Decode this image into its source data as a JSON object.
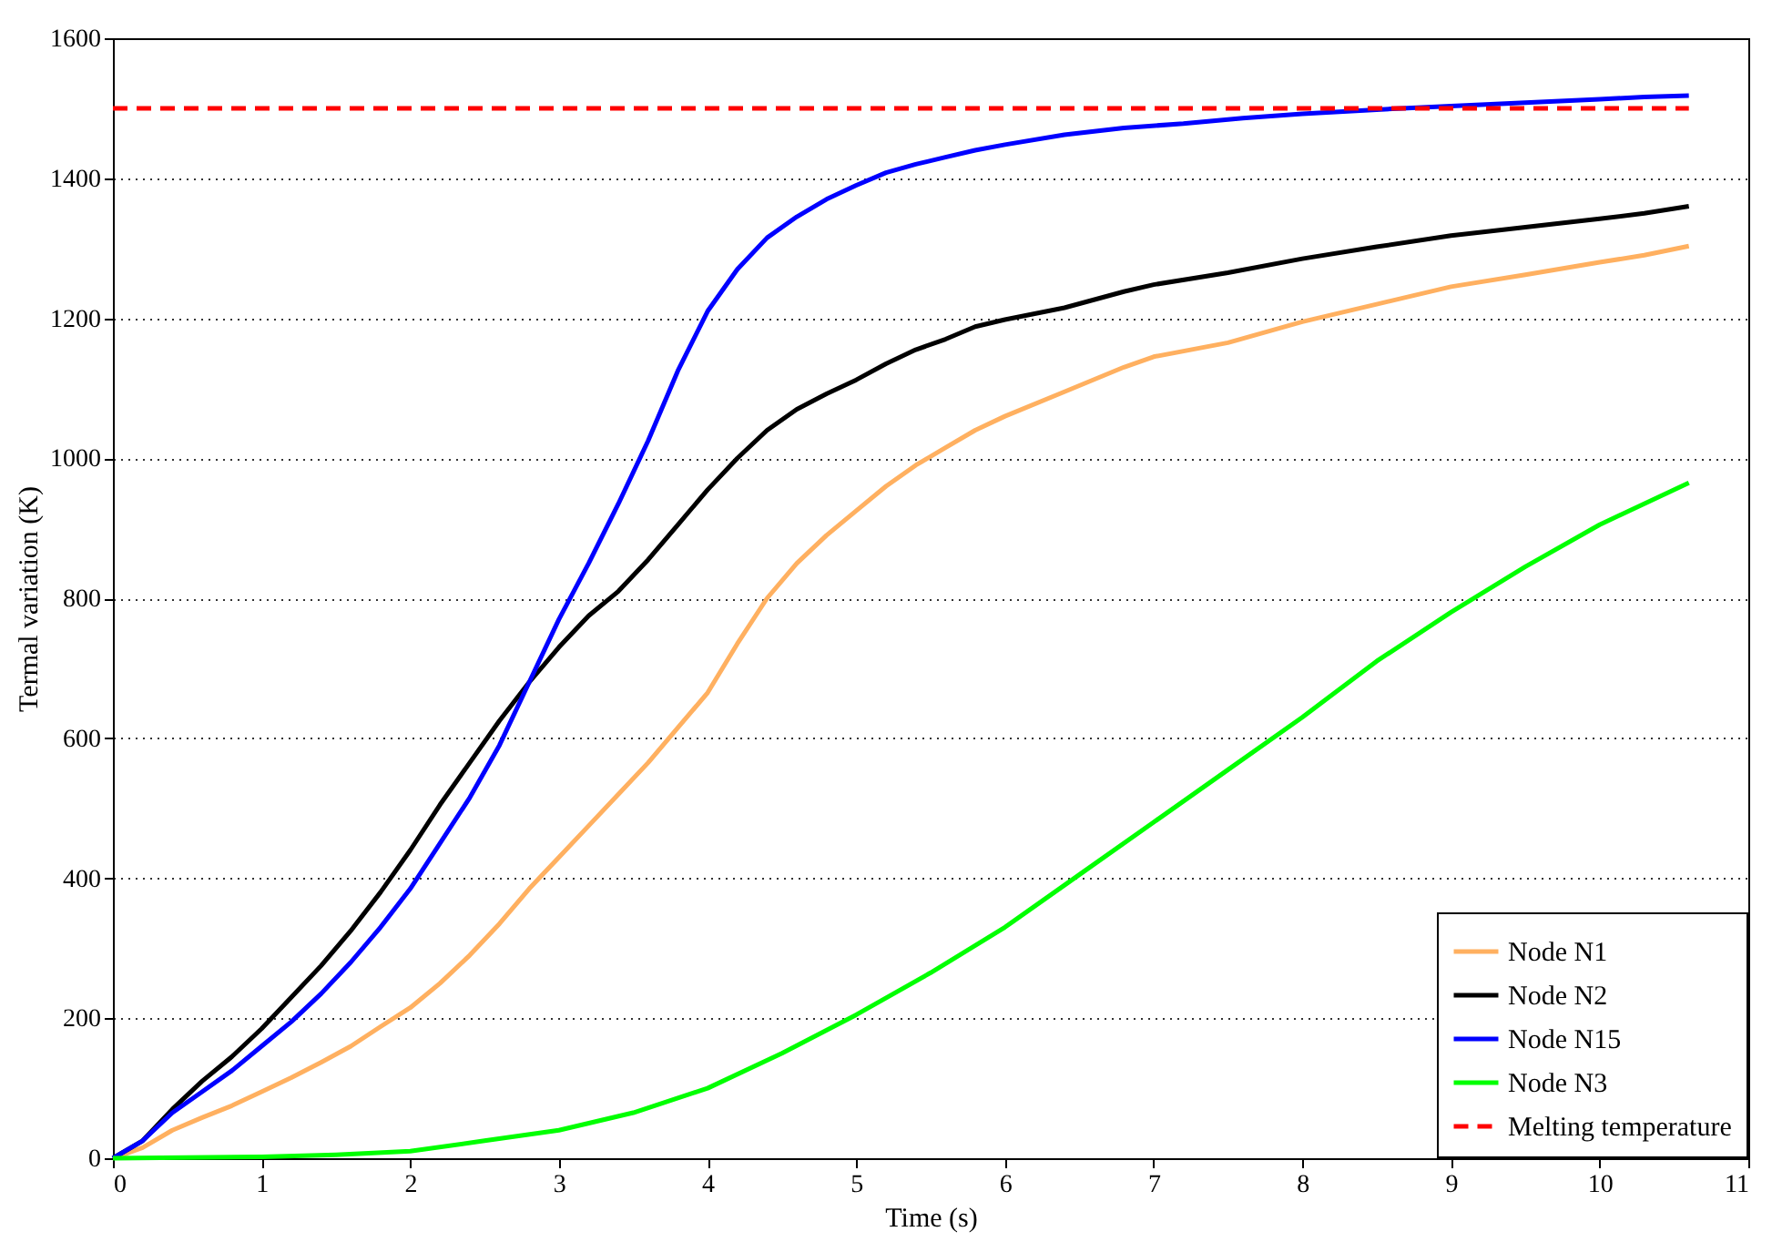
{
  "chart_data": {
    "type": "line",
    "xlabel": "Time (s)",
    "ylabel": "Termal variation (K)",
    "xlim": [
      0,
      11
    ],
    "xticks": [
      0,
      1,
      2,
      3,
      4,
      5,
      6,
      7,
      8,
      9,
      10,
      11
    ],
    "ylim": [
      0,
      1600
    ],
    "yticks": [
      0,
      200,
      400,
      600,
      800,
      1000,
      1200,
      1400,
      1600
    ],
    "grid": "y",
    "legend": "bottom right",
    "line_style": "solid",
    "series": [
      {
        "name": "Node N1",
        "color": "#ffb060",
        "x": [
          0,
          0.2,
          0.4,
          0.6,
          0.8,
          1,
          1.2,
          1.4,
          1.6,
          1.8,
          2,
          2.2,
          2.4,
          2.6,
          2.8,
          3,
          3.2,
          3.4,
          3.6,
          3.8,
          4,
          4.2,
          4.4,
          4.6,
          4.8,
          5,
          5.2,
          5.4,
          5.6,
          5.8,
          6,
          6.4,
          6.8,
          7,
          7.5,
          8,
          8.5,
          9,
          9.5,
          10,
          10.3,
          10.6
        ],
        "values": [
          0,
          15,
          40,
          58,
          75,
          95,
          115,
          137,
          160,
          188,
          215,
          250,
          290,
          335,
          385,
          430,
          475,
          520,
          565,
          615,
          665,
          735,
          800,
          850,
          890,
          925,
          960,
          990,
          1015,
          1040,
          1060,
          1095,
          1130,
          1145,
          1165,
          1195,
          1220,
          1245,
          1262,
          1280,
          1290,
          1303
        ]
      },
      {
        "name": "Node N2",
        "color": "#000000",
        "x": [
          0,
          0.2,
          0.4,
          0.6,
          0.8,
          1,
          1.2,
          1.4,
          1.6,
          1.8,
          2,
          2.2,
          2.4,
          2.6,
          2.8,
          3,
          3.2,
          3.4,
          3.6,
          3.8,
          4,
          4.2,
          4.4,
          4.6,
          4.8,
          5,
          5.2,
          5.4,
          5.6,
          5.8,
          6,
          6.4,
          6.8,
          7,
          7.5,
          8,
          8.5,
          9,
          9.5,
          10,
          10.3,
          10.6
        ],
        "values": [
          0,
          25,
          70,
          110,
          145,
          185,
          230,
          275,
          325,
          380,
          440,
          505,
          565,
          625,
          680,
          730,
          775,
          810,
          855,
          905,
          955,
          1000,
          1040,
          1070,
          1092,
          1112,
          1135,
          1155,
          1170,
          1188,
          1198,
          1215,
          1238,
          1248,
          1265,
          1285,
          1302,
          1318,
          1330,
          1342,
          1350,
          1360
        ]
      },
      {
        "name": "Node N15",
        "color": "#0000ff",
        "x": [
          0,
          0.2,
          0.4,
          0.6,
          0.8,
          1,
          1.2,
          1.4,
          1.6,
          1.8,
          2,
          2.2,
          2.4,
          2.6,
          2.8,
          3,
          3.2,
          3.4,
          3.6,
          3.8,
          4,
          4.2,
          4.4,
          4.6,
          4.8,
          5,
          5.2,
          5.4,
          5.6,
          5.8,
          6,
          6.4,
          6.8,
          7.2,
          7.6,
          8,
          8.5,
          9,
          9.5,
          10,
          10.3,
          10.6
        ],
        "values": [
          0,
          25,
          65,
          95,
          125,
          160,
          195,
          235,
          280,
          330,
          385,
          450,
          515,
          590,
          680,
          770,
          850,
          935,
          1025,
          1125,
          1210,
          1270,
          1315,
          1345,
          1370,
          1390,
          1408,
          1420,
          1430,
          1440,
          1448,
          1462,
          1472,
          1478,
          1486,
          1492,
          1498,
          1503,
          1508,
          1513,
          1516,
          1518
        ]
      },
      {
        "name": "Node N3",
        "color": "#00ff00",
        "x": [
          0,
          1,
          1.5,
          2,
          2.5,
          3,
          3.5,
          4,
          4.5,
          5,
          5.5,
          6,
          6.5,
          7,
          7.5,
          8,
          8.5,
          9,
          9.5,
          10,
          10.6
        ],
        "values": [
          0,
          2,
          5,
          10,
          25,
          40,
          65,
          100,
          150,
          205,
          265,
          330,
          405,
          480,
          555,
          630,
          710,
          780,
          845,
          905,
          965
        ]
      },
      {
        "name": "Melting temperature",
        "color": "#ff0000",
        "line_style": "dashed",
        "x": [
          0,
          10.6
        ],
        "values": [
          1500,
          1500
        ]
      }
    ]
  }
}
